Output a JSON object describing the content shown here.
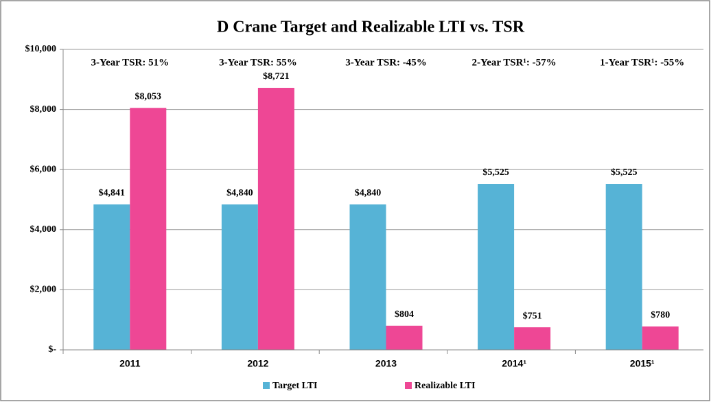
{
  "chart_data": {
    "type": "bar",
    "title": "D Crane Target and Realizable LTI vs. TSR",
    "categories": [
      "2011",
      "2012",
      "2013",
      "2014¹",
      "2015¹"
    ],
    "series": [
      {
        "name": "Target LTI",
        "color": "#56b3d6",
        "values": [
          4841,
          4840,
          4840,
          5525,
          5525
        ],
        "value_labels": [
          "$4,841",
          "$4,840",
          "$4,840",
          "$5,525",
          "$5,525"
        ]
      },
      {
        "name": "Realizable LTI",
        "color": "#ee4795",
        "values": [
          8053,
          8721,
          804,
          751,
          780
        ],
        "value_labels": [
          "$8,053",
          "$8,721",
          "$804",
          "$751",
          "$780"
        ]
      }
    ],
    "annotations": [
      {
        "text": "3-Year TSR: 51%",
        "color": "#3f8a3a"
      },
      {
        "text": "3-Year TSR: 55%",
        "color": "#3f8a3a"
      },
      {
        "text": "3-Year TSR: -45%",
        "color": "#e8503f"
      },
      {
        "text": "2-Year TSR¹: -57%",
        "color": "#e8503f"
      },
      {
        "text": "1-Year TSR¹: -55%",
        "color": "#e8503f"
      }
    ],
    "ylim": [
      0,
      10000
    ],
    "yticks": [
      {
        "value": 0,
        "label": "$-"
      },
      {
        "value": 2000,
        "label": "$2,000"
      },
      {
        "value": 4000,
        "label": "$4,000"
      },
      {
        "value": 6000,
        "label": "$6,000"
      },
      {
        "value": 8000,
        "label": "$8,000"
      },
      {
        "value": 10000,
        "label": "$10,000"
      }
    ],
    "grid": true
  }
}
